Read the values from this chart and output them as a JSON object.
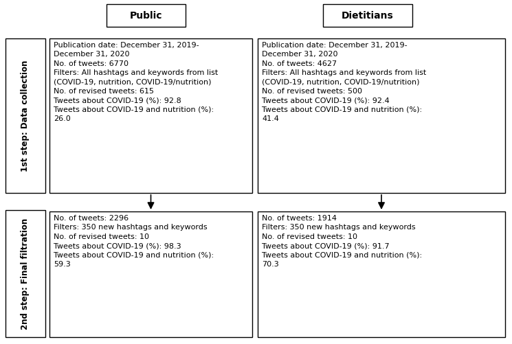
{
  "background_color": "#ffffff",
  "header_public": "Public",
  "header_dietitians": "Dietitians",
  "step1_label": "1st step: Data collection",
  "step2_label": "2nd step: Final filtration",
  "step1_sup_text": "st",
  "step2_sup_text": "nd",
  "box_public_step1": "Publication date: December 31, 2019-\nDecember 31, 2020\nNo. of tweets: 6770\nFilters: All hashtags and keywords from list\n(COVID-19, nutrition, COVID-19/nutrition)\nNo. of revised tweets: 615\nTweets about COVID-19 (%): 92.8\nTweets about COVID-19 and nutrition (%):\n26.0",
  "box_dietitians_step1": "Publication date: December 31, 2019-\nDecember 31, 2020\nNo. of tweets: 4627\nFilters: All hashtags and keywords from list\n(COVID-19, nutrition, COVID-19/nutrition)\nNo. of revised tweets: 500\nTweets about COVID-19 (%): 92.4\nTweets about COVID-19 and nutrition (%):\n41.4",
  "box_public_step2": "No. of tweets: 2296\nFilters: 350 new hashtags and keywords\nNo. of revised tweets: 10\nTweets about COVID-19 (%): 98.3\nTweets about COVID-19 and nutrition (%):\n59.3",
  "box_dietitians_step2": "No. of tweets: 1914\nFilters: 350 new hashtags and keywords\nNo. of revised tweets: 10\nTweets about COVID-19 (%): 91.7\nTweets about COVID-19 and nutrition (%):\n70.3",
  "box_color": "#ffffff",
  "box_edge_color": "#000000",
  "text_color": "#000000",
  "arrow_color": "#000000",
  "font_size_box": 8.0,
  "font_size_header": 10.0,
  "font_size_step": 8.5,
  "lw": 1.0
}
